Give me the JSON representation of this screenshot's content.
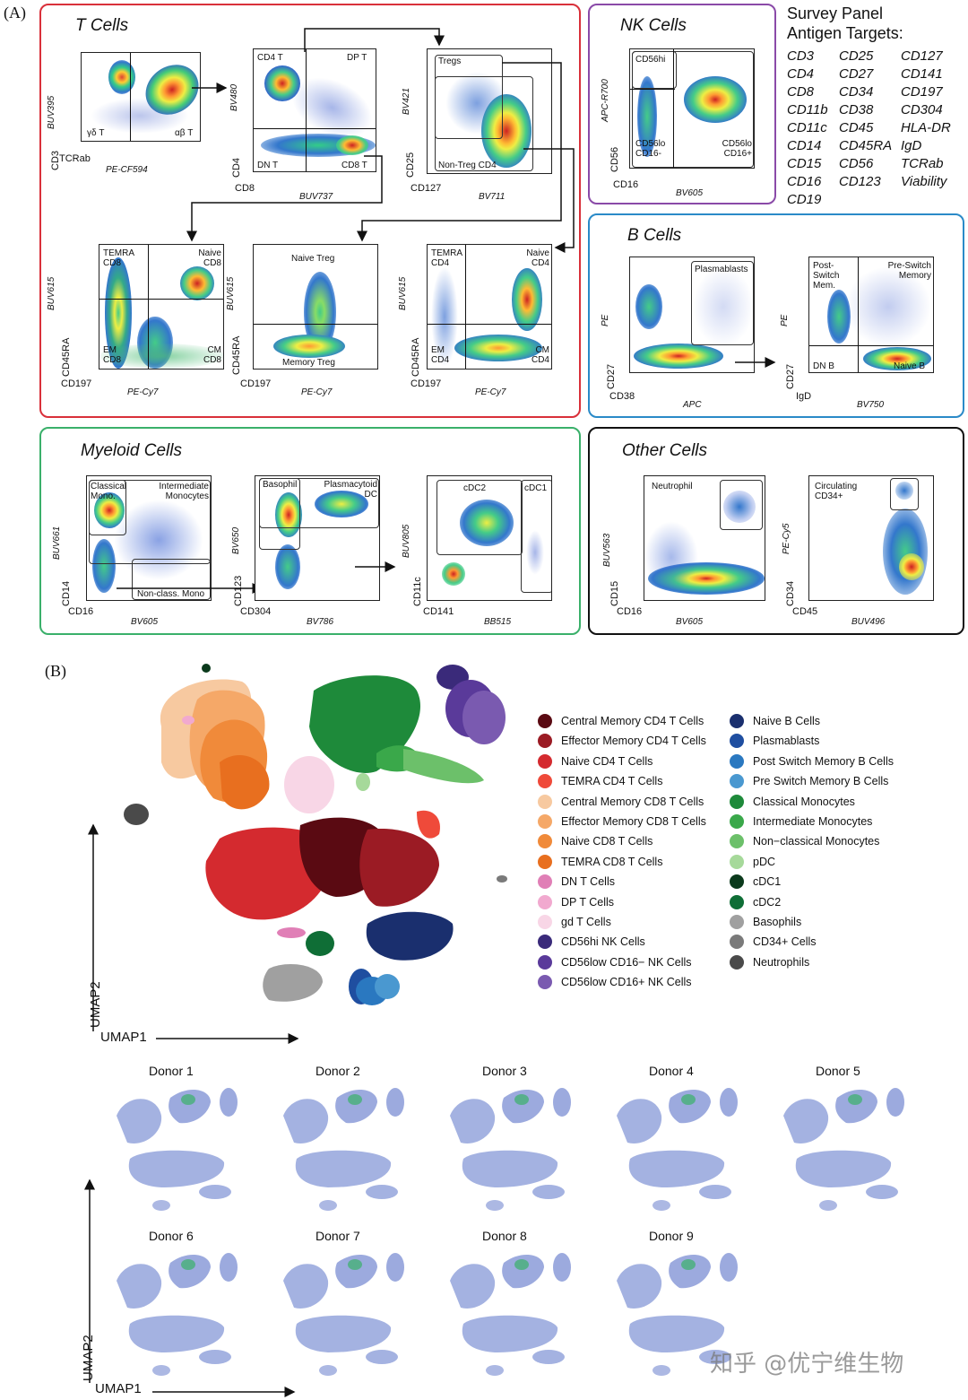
{
  "labels": {
    "a": "(A)",
    "b": "(B)"
  },
  "tcells": {
    "title": "T Cells",
    "p1": {
      "y": "CD3",
      "yi": "BUV395",
      "x": "TCRab",
      "xi": "PE-CF594",
      "q1": "γδ T",
      "q2": "αβ T"
    },
    "p2": {
      "y": "CD4",
      "yi": "BV480",
      "x": "CD8",
      "xi": "BUV737",
      "tl": "CD4 T",
      "tr": "DP T",
      "bl": "DN T",
      "br": "CD8 T"
    },
    "p3": {
      "y": "CD25",
      "yi": "BV421",
      "x": "CD127",
      "xi": "BV711",
      "g1": "Tregs",
      "g2": "Non-Treg CD4"
    },
    "p4": {
      "y": "CD45RA",
      "yi": "BUV615",
      "x": "CD197",
      "xi": "PE-Cy7",
      "tl": "TEMRA CD8",
      "tr": "Naive CD8",
      "bl": "EM CD8",
      "br": "CM CD8"
    },
    "p5": {
      "y": "CD45RA",
      "yi": "BUV615",
      "x": "CD197",
      "xi": "PE-Cy7",
      "t": "Naive Treg",
      "b": "Memory Treg"
    },
    "p6": {
      "y": "CD45RA",
      "yi": "BUV615",
      "x": "CD197",
      "xi": "PE-Cy7",
      "tl": "TEMRA CD4",
      "tr": "Naive CD4",
      "bl": "EM CD4",
      "br": "CM CD4"
    }
  },
  "nk": {
    "title": "NK Cells",
    "y": "CD56",
    "yi": "APC-R700",
    "x": "CD16",
    "xi": "BV605",
    "g1": "CD56hi",
    "g2": "CD56lo CD16-",
    "g3": "CD56lo CD16+"
  },
  "survey": {
    "title1": "Survey Panel",
    "title2": "Antigen Targets:",
    "col1": [
      "CD3",
      "CD4",
      "CD8",
      "CD11b",
      "CD11c",
      "CD14",
      "CD15",
      "CD16",
      "CD19"
    ],
    "col2": [
      "CD25",
      "CD27",
      "CD34",
      "CD38",
      "CD45",
      "CD45RA",
      "CD56",
      "CD123"
    ],
    "col3": [
      "CD127",
      "CD141",
      "CD197",
      "CD304",
      "HLA-DR",
      "IgD",
      "TCRab",
      "Viability"
    ]
  },
  "bcells": {
    "title": "B Cells",
    "p1": {
      "y": "CD27",
      "yi": "PE",
      "x": "CD38",
      "xi": "APC",
      "g1": "Plasmablasts"
    },
    "p2": {
      "y": "CD27",
      "yi": "PE",
      "x": "IgD",
      "xi": "BV750",
      "tl": "Post- Switch Mem.",
      "tr": "Pre-Switch Memory",
      "bl": "DN B",
      "br": "Naive B"
    }
  },
  "myeloid": {
    "title": "Myeloid Cells",
    "p1": {
      "y": "CD14",
      "yi": "BUV661",
      "x": "CD16",
      "xi": "BV605",
      "g1": "Classical Mono.",
      "g2": "Intermediate Monocytes",
      "g3": "Non-class. Mono"
    },
    "p2": {
      "y": "CD123",
      "yi": "BV650",
      "x": "CD304",
      "xi": "BV786",
      "g1": "Basophil",
      "g2": "Plasmacytoid DC"
    },
    "p3": {
      "y": "CD11c",
      "yi": "BUV805",
      "x": "CD141",
      "xi": "BB515",
      "g1": "cDC2",
      "g2": "cDC1"
    }
  },
  "other": {
    "title": "Other Cells",
    "p1": {
      "y": "CD15",
      "yi": "BUV563",
      "x": "CD16",
      "xi": "BV605",
      "g1": "Neutrophil"
    },
    "p2": {
      "y": "CD34",
      "yi": "PE-Cy5",
      "x": "CD45",
      "xi": "BUV496",
      "g1": "Circulating CD34+"
    }
  },
  "umap": {
    "xaxis": "UMAP1",
    "yaxis": "UMAP2",
    "legend": [
      {
        "label": "Central Memory CD4 T Cells",
        "color": "#5a0a12"
      },
      {
        "label": "Effector Memory CD4 T Cells",
        "color": "#9b1b24"
      },
      {
        "label": "Naive CD4 T Cells",
        "color": "#d42a2f"
      },
      {
        "label": "TEMRA CD4 T Cells",
        "color": "#ef4a3a"
      },
      {
        "label": "Central Memory CD8 T Cells",
        "color": "#f7c9a0"
      },
      {
        "label": "Effector Memory CD8 T Cells",
        "color": "#f5a868"
      },
      {
        "label": "Naive CD8 T Cells",
        "color": "#f08a3a"
      },
      {
        "label": "TEMRA CD8 T Cells",
        "color": "#e86f1f"
      },
      {
        "label": "DN T Cells",
        "color": "#e07fb6"
      },
      {
        "label": "DP T Cells",
        "color": "#f1a9cf"
      },
      {
        "label": "gd T Cells",
        "color": "#f8d6e6"
      },
      {
        "label": "CD56hi NK Cells",
        "color": "#3a2a7a"
      },
      {
        "label": "CD56low CD16− NK Cells",
        "color": "#5a3a9a"
      },
      {
        "label": "CD56low CD16+ NK Cells",
        "color": "#7a5ab0"
      },
      {
        "label": "Naive B Cells",
        "color": "#1a2f6e"
      },
      {
        "label": "Plasmablasts",
        "color": "#1f4ea0"
      },
      {
        "label": "Post Switch Memory B Cells",
        "color": "#2a78c0"
      },
      {
        "label": "Pre Switch Memory B Cells",
        "color": "#4a98d0"
      },
      {
        "label": "Classical Monocytes",
        "color": "#1e8a3a"
      },
      {
        "label": "Intermediate Monocytes",
        "color": "#3aa84a"
      },
      {
        "label": "Non−classical Monocytes",
        "color": "#6cc06a"
      },
      {
        "label": "pDC",
        "color": "#a6d99a"
      },
      {
        "label": "cDC1",
        "color": "#0b3a1c"
      },
      {
        "label": "cDC2",
        "color": "#0f6e36"
      },
      {
        "label": "Basophils",
        "color": "#a0a0a0"
      },
      {
        "label": "CD34+ Cells",
        "color": "#7a7a7a"
      },
      {
        "label": "Neutrophils",
        "color": "#4a4a4a"
      }
    ],
    "donors": [
      "Donor 1",
      "Donor 2",
      "Donor 3",
      "Donor 4",
      "Donor 5",
      "Donor 6",
      "Donor 7",
      "Donor 8",
      "Donor 9"
    ]
  },
  "watermark": "知乎 @优宁维生物"
}
